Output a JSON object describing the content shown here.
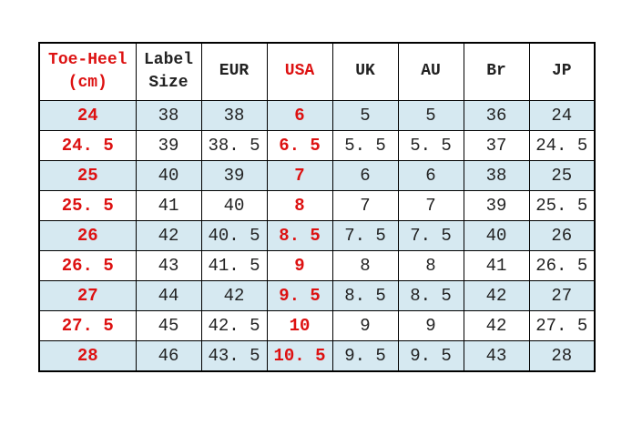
{
  "table": {
    "headers": [
      {
        "label": "Toe-Heel\n(cm)",
        "red": true
      },
      {
        "label": "Label\nSize",
        "red": false
      },
      {
        "label": "EUR",
        "red": false
      },
      {
        "label": "USA",
        "red": true
      },
      {
        "label": "UK",
        "red": false
      },
      {
        "label": "AU",
        "red": false
      },
      {
        "label": "Br",
        "red": false
      },
      {
        "label": "JP",
        "red": false
      }
    ],
    "red_columns": [
      0,
      3
    ],
    "rows": [
      [
        "24",
        "38",
        "38",
        "6",
        "5",
        "5",
        "36",
        "24"
      ],
      [
        "24. 5",
        "39",
        "38. 5",
        "6. 5",
        "5. 5",
        "5. 5",
        "37",
        "24. 5"
      ],
      [
        "25",
        "40",
        "39",
        "7",
        "6",
        "6",
        "38",
        "25"
      ],
      [
        "25. 5",
        "41",
        "40",
        "8",
        "7",
        "7",
        "39",
        "25. 5"
      ],
      [
        "26",
        "42",
        "40. 5",
        "8. 5",
        "7. 5",
        "7. 5",
        "40",
        "26"
      ],
      [
        "26. 5",
        "43",
        "41. 5",
        "9",
        "8",
        "8",
        "41",
        "26. 5"
      ],
      [
        "27",
        "44",
        "42",
        "9. 5",
        "8. 5",
        "8. 5",
        "42",
        "27"
      ],
      [
        "27. 5",
        "45",
        "42. 5",
        "10",
        "9",
        "9",
        "42",
        "27. 5"
      ],
      [
        "28",
        "46",
        "43. 5",
        "10. 5",
        "9. 5",
        "9. 5",
        "43",
        "28"
      ]
    ]
  },
  "colors": {
    "accent_red": "#dd1111",
    "row_alt_blue": "#d6e9f1",
    "text_black": "#222222",
    "border_black": "#000000",
    "background": "#ffffff"
  }
}
